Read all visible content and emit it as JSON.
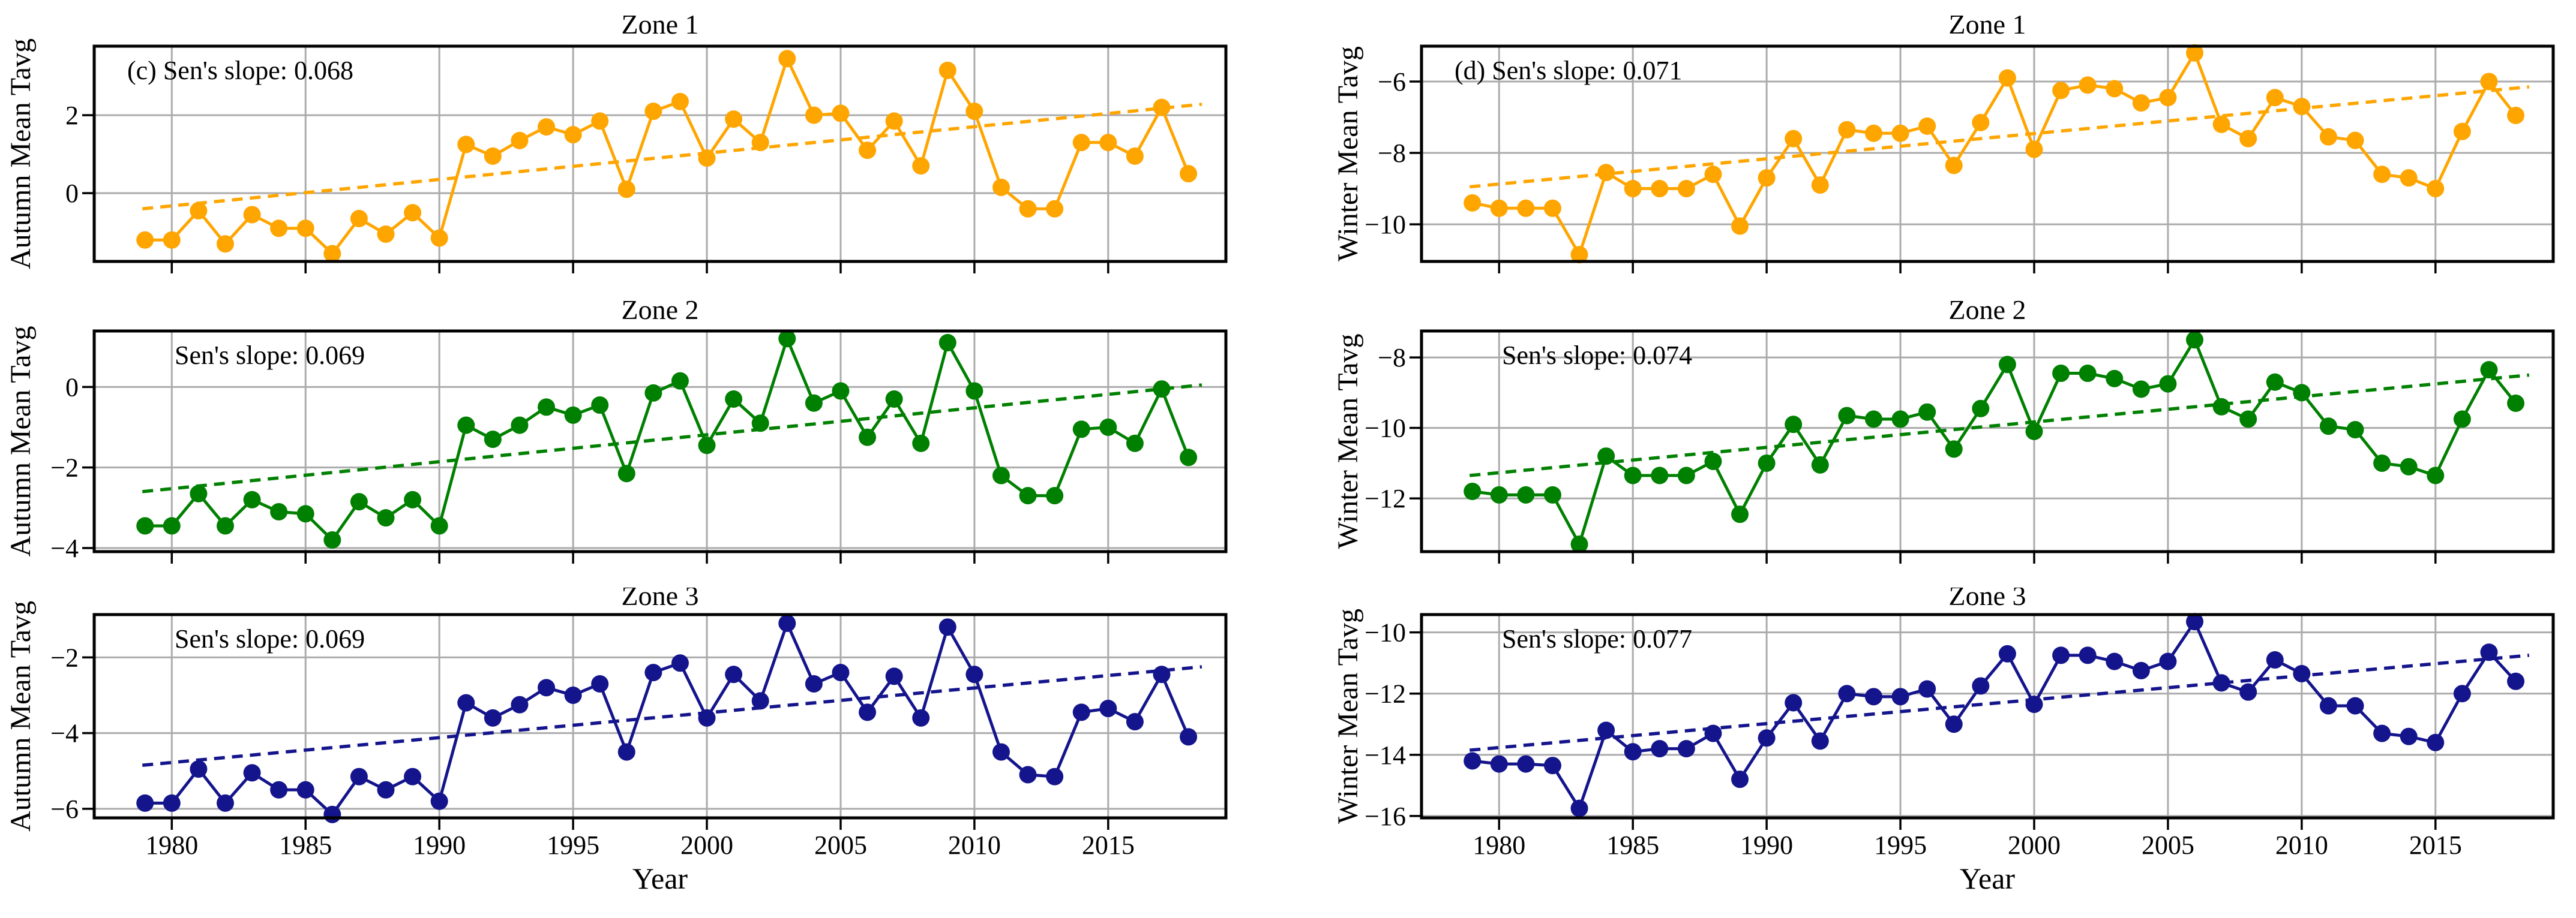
{
  "figure": {
    "xlabel": "Year",
    "x_tick_years": [
      1980,
      1985,
      1990,
      1995,
      2000,
      2005,
      2010,
      2015
    ],
    "x_tick_labels": [
      "1980",
      "1985",
      "1990",
      "1995",
      "2000",
      "2005",
      "2010",
      "2015"
    ],
    "years": [
      1979,
      1980,
      1981,
      1982,
      1983,
      1984,
      1985,
      1986,
      1987,
      1988,
      1989,
      1990,
      1991,
      1992,
      1993,
      1994,
      1995,
      1996,
      1997,
      1998,
      1999,
      2000,
      2001,
      2002,
      2003,
      2004,
      2005,
      2006,
      2007,
      2008,
      2009,
      2010,
      2011,
      2012,
      2013,
      2014,
      2015,
      2016,
      2017,
      2018
    ],
    "colors": {
      "zone1": "#FFA500",
      "zone2": "#008000",
      "zone3": "#14148C",
      "grid": "#ABABAB",
      "frame": "#000000"
    }
  },
  "chart_data": [
    {
      "id": "autumn-zone1",
      "type": "line",
      "title": "Zone 1",
      "ylabel": "Autumn Mean Tavg",
      "annotation": "(c) Sen's slope: 0.068",
      "sens_slope": 0.068,
      "color_key": "zone1",
      "col": 0,
      "row": 0,
      "ylim": [
        -1.75,
        3.77
      ],
      "yticks": [
        2,
        0
      ],
      "ytick_labels": [
        "2",
        "0"
      ],
      "values": [
        -1.2,
        -1.2,
        -0.45,
        -1.3,
        -0.55,
        -0.9,
        -0.9,
        -1.55,
        -0.65,
        -1.05,
        -0.5,
        -1.15,
        1.25,
        0.95,
        1.35,
        1.7,
        1.5,
        1.85,
        0.1,
        2.1,
        2.35,
        0.9,
        1.9,
        1.3,
        3.45,
        2.0,
        2.05,
        1.1,
        1.85,
        0.7,
        3.15,
        2.1,
        0.15,
        -0.4,
        -0.4,
        1.3,
        1.3,
        0.95,
        2.2,
        0.5
      ],
      "trend": {
        "x": [
          1978.9,
          2018.5
        ],
        "y": [
          -0.4,
          2.28
        ]
      }
    },
    {
      "id": "autumn-zone2",
      "type": "line",
      "title": "Zone 2",
      "ylabel": "Autumn Mean Tavg",
      "annotation": "Sen's slope: 0.069",
      "sens_slope": 0.069,
      "color_key": "zone2",
      "col": 0,
      "row": 1,
      "ylim": [
        -4.09,
        1.39
      ],
      "yticks": [
        0,
        -2,
        -4
      ],
      "ytick_labels": [
        "0",
        "−2",
        "−4"
      ],
      "values": [
        -3.45,
        -3.45,
        -2.65,
        -3.45,
        -2.8,
        -3.1,
        -3.15,
        -3.8,
        -2.85,
        -3.25,
        -2.8,
        -3.45,
        -0.95,
        -1.3,
        -0.95,
        -0.5,
        -0.7,
        -0.45,
        -2.15,
        -0.15,
        0.15,
        -1.45,
        -0.3,
        -0.9,
        1.2,
        -0.4,
        -0.1,
        -1.25,
        -0.3,
        -1.4,
        1.1,
        -0.1,
        -2.2,
        -2.7,
        -2.7,
        -1.05,
        -1.0,
        -1.4,
        -0.05,
        -1.75
      ],
      "trend": {
        "x": [
          1978.9,
          2018.5
        ],
        "y": [
          -2.6,
          0.05
        ]
      }
    },
    {
      "id": "autumn-zone3",
      "type": "line",
      "title": "Zone 3",
      "ylabel": "Autumn Mean Tavg",
      "annotation": "Sen's slope: 0.069",
      "sens_slope": 0.069,
      "color_key": "zone3",
      "col": 0,
      "row": 2,
      "ylim": [
        -6.24,
        -0.87
      ],
      "yticks": [
        -2,
        -4,
        -6
      ],
      "ytick_labels": [
        "−2",
        "−4",
        "−6"
      ],
      "values": [
        -5.85,
        -5.85,
        -4.95,
        -5.85,
        -5.05,
        -5.5,
        -5.5,
        -6.15,
        -5.15,
        -5.5,
        -5.15,
        -5.8,
        -3.2,
        -3.6,
        -3.25,
        -2.8,
        -3.0,
        -2.7,
        -4.5,
        -2.4,
        -2.15,
        -3.6,
        -2.45,
        -3.15,
        -1.1,
        -2.7,
        -2.4,
        -3.45,
        -2.5,
        -3.6,
        -1.2,
        -2.45,
        -4.5,
        -5.1,
        -5.15,
        -3.45,
        -3.35,
        -3.7,
        -2.45,
        -4.1
      ],
      "trend": {
        "x": [
          1978.9,
          2018.5
        ],
        "y": [
          -4.85,
          -2.25
        ]
      }
    },
    {
      "id": "winter-zone1",
      "type": "line",
      "title": "Zone 1",
      "ylabel": "Winter Mean Tavg",
      "annotation": "(d) Sen's slope: 0.071",
      "sens_slope": 0.071,
      "color_key": "zone1",
      "col": 1,
      "row": 0,
      "ylim": [
        -11.04,
        -5.01
      ],
      "yticks": [
        -6,
        -8,
        -10
      ],
      "ytick_labels": [
        "−6",
        "−8",
        "−10"
      ],
      "values": [
        -9.4,
        -9.55,
        -9.55,
        -9.55,
        -10.85,
        -8.55,
        -9.0,
        -9.0,
        -9.0,
        -8.6,
        -10.05,
        -8.7,
        -7.6,
        -8.9,
        -7.35,
        -7.45,
        -7.45,
        -7.25,
        -8.35,
        -7.15,
        -5.9,
        -7.9,
        -6.25,
        -6.1,
        -6.2,
        -6.6,
        -6.45,
        -5.2,
        -7.2,
        -7.6,
        -6.45,
        -6.7,
        -7.55,
        -7.65,
        -8.6,
        -8.7,
        -9.0,
        -7.4,
        -6.0,
        -6.95
      ],
      "trend": {
        "x": [
          1978.9,
          2018.5
        ],
        "y": [
          -8.95,
          -6.15
        ]
      }
    },
    {
      "id": "winter-zone2",
      "type": "line",
      "title": "Zone 2",
      "ylabel": "Winter Mean Tavg",
      "annotation": "Sen's slope: 0.074",
      "sens_slope": 0.074,
      "color_key": "zone2",
      "col": 1,
      "row": 1,
      "ylim": [
        -13.51,
        -7.25
      ],
      "yticks": [
        -8,
        -10,
        -12
      ],
      "ytick_labels": [
        "−8",
        "−10",
        "−12"
      ],
      "values": [
        -11.8,
        -11.9,
        -11.9,
        -11.9,
        -13.3,
        -10.8,
        -11.35,
        -11.35,
        -11.35,
        -10.95,
        -12.45,
        -11.0,
        -9.9,
        -11.05,
        -9.65,
        -9.75,
        -9.75,
        -9.55,
        -10.6,
        -9.45,
        -8.2,
        -10.1,
        -8.45,
        -8.45,
        -8.6,
        -8.9,
        -8.75,
        -7.5,
        -9.4,
        -9.75,
        -8.7,
        -9.0,
        -9.95,
        -10.05,
        -11.0,
        -11.1,
        -11.35,
        -9.75,
        -8.35,
        -9.3
      ],
      "trend": {
        "x": [
          1978.9,
          2018.5
        ],
        "y": [
          -11.35,
          -8.5
        ]
      }
    },
    {
      "id": "winter-zone3",
      "type": "line",
      "title": "Zone 3",
      "ylabel": "Winter Mean Tavg",
      "annotation": "Sen's slope: 0.077",
      "sens_slope": 0.077,
      "color_key": "zone3",
      "col": 1,
      "row": 2,
      "ylim": [
        -16.06,
        -9.42
      ],
      "yticks": [
        -10,
        -12,
        -14,
        -16
      ],
      "ytick_labels": [
        "−10",
        "−12",
        "−14",
        "−16"
      ],
      "values": [
        -14.2,
        -14.3,
        -14.3,
        -14.35,
        -15.75,
        -13.2,
        -13.9,
        -13.8,
        -13.8,
        -13.3,
        -14.8,
        -13.45,
        -12.3,
        -13.55,
        -12.0,
        -12.1,
        -12.1,
        -11.85,
        -13.0,
        -11.75,
        -10.7,
        -12.35,
        -10.75,
        -10.75,
        -10.95,
        -11.25,
        -10.95,
        -9.65,
        -11.65,
        -11.95,
        -10.9,
        -11.35,
        -12.4,
        -12.4,
        -13.3,
        -13.4,
        -13.6,
        -12.0,
        -10.65,
        -11.6
      ],
      "trend": {
        "x": [
          1978.9,
          2018.5
        ],
        "y": [
          -13.85,
          -10.75
        ]
      }
    }
  ]
}
